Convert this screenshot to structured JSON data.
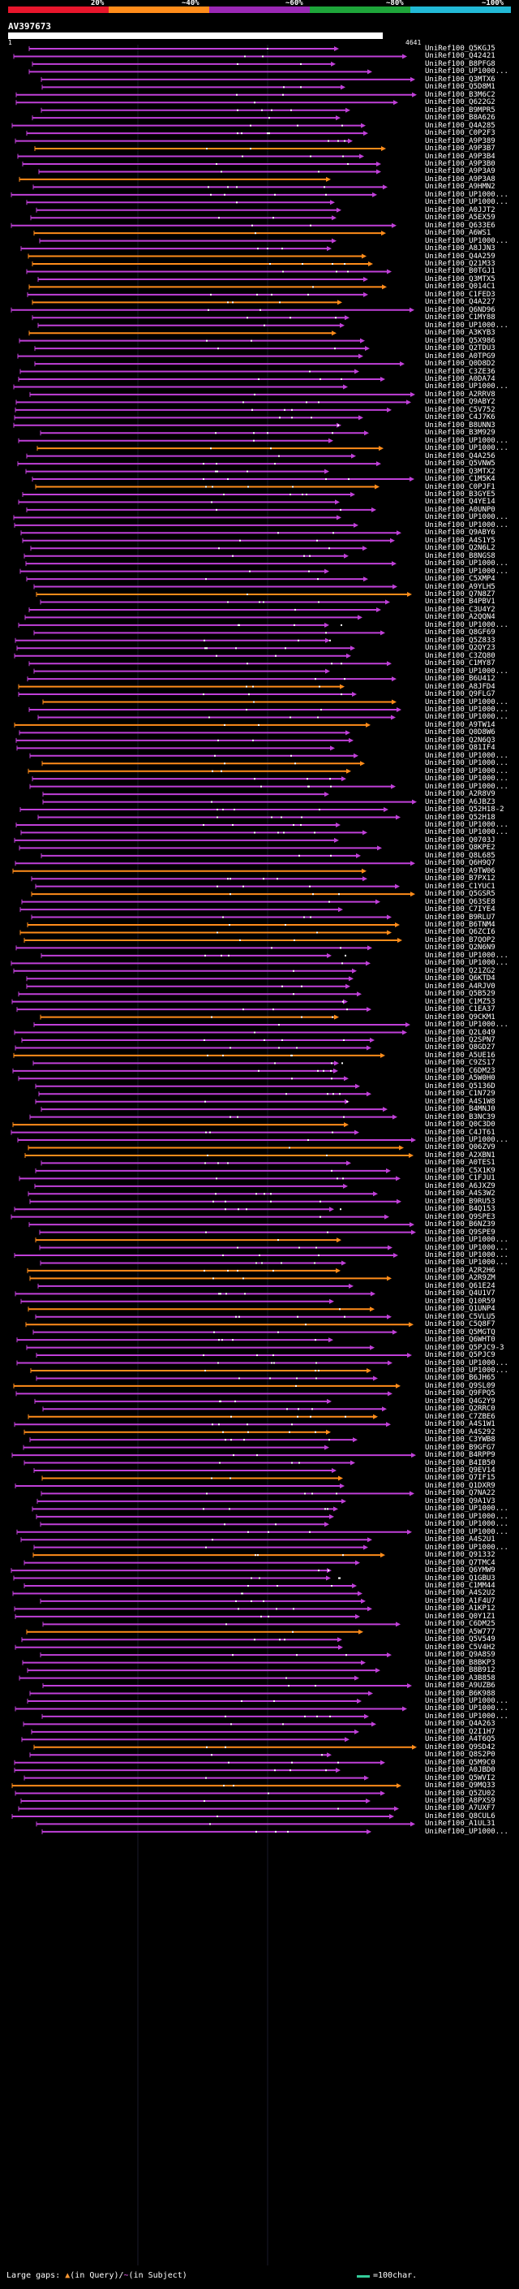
{
  "scale": {
    "labels": [
      "20%",
      "~40%",
      "~60%",
      "~80%",
      "~100%"
    ],
    "colors": [
      "#e8162c",
      "#ff8c1a",
      "#9b28b5",
      "#1ea53a",
      "#22b9d6"
    ]
  },
  "query": {
    "id": "AV397673",
    "start": "1",
    "end": "4641"
  },
  "hits": [
    "UniRef100_Q5KGJ5",
    "UniRef100_Q42421",
    "UniRef100_B8PFG8",
    "UniRef100_UP1000...",
    "UniRef100_Q3MTX6",
    "UniRef100_Q5D8M1",
    "UniRef100_B3M6C2",
    "UniRef100_Q622G2",
    "UniRef100_B9MPR5",
    "UniRef100_B8A626",
    "UniRef100_Q4A285",
    "UniRef100_C0P2F3",
    "UniRef100_A9P389",
    "UniRef100_A9P3B7",
    "UniRef100_A9P3B4",
    "UniRef100_A9P3B0",
    "UniRef100_A9P3A9",
    "UniRef100_A9P3A8",
    "UniRef100_A9HMN2",
    "UniRef100_UP1000...",
    "UniRef100_UP1000...",
    "UniRef100_A0JJT2",
    "UniRef100_A5EX59",
    "UniRef100_Q633E6",
    "UniRef100_A6WS1",
    "UniRef100_UP1000...",
    "UniRef100_A8JJN3",
    "UniRef100_Q4A259",
    "UniRef100_Q21M33",
    "UniRef100_B0TGJ1",
    "UniRef100_Q3MTX5",
    "UniRef100_Q014C1",
    "UniRef100_C1FED3",
    "UniRef100_Q4A227",
    "UniRef100_Q6ND96",
    "UniRef100_C1MY88",
    "UniRef100_UP1000...",
    "UniRef100_A3KYB3",
    "UniRef100_Q5X986",
    "UniRef100_Q2TDU3",
    "UniRef100_A0TPG9",
    "UniRef100_Q0D8D2",
    "UniRef100_C3ZE36",
    "UniRef100_A0DA74",
    "UniRef100_UP1000...",
    "UniRef100_A2RRV8",
    "UniRef100_Q9ABY2",
    "UniRef100_C5V752",
    "UniRef100_C4J7K6",
    "UniRef100_B8UNN3",
    "UniRef100_B3M929",
    "UniRef100_UP1000...",
    "UniRef100_UP1000...",
    "UniRef100_Q4A256",
    "UniRef100_Q5VNW5",
    "UniRef100_Q3MTX2",
    "UniRef100_C1M5K4",
    "UniRef100_C0PJF1",
    "UniRef100_B3GYE5",
    "UniRef100_Q4YE14",
    "UniRef100_A0UNP0",
    "UniRef100_UP1000...",
    "UniRef100_UP1000...",
    "UniRef100_Q9ABY6",
    "UniRef100_A4S1Y5",
    "UniRef100_Q2N6L2",
    "UniRef100_B8NGS8",
    "UniRef100_UP1000...",
    "UniRef100_UP1000...",
    "UniRef100_C5XMP4",
    "UniRef100_A9YLH5",
    "UniRef100_Q7N8Z7",
    "UniRef100_B4PBV1",
    "UniRef100_C3U4Y2",
    "UniRef100_A2QQN4",
    "UniRef100_UP1000...",
    "UniRef100_Q8GF69",
    "UniRef100_Q5Z833",
    "UniRef100_Q2QY23",
    "UniRef100_C3ZQ80",
    "UniRef100_C1MY87",
    "UniRef100_UP1000...",
    "UniRef100_B6U412",
    "UniRef100_A8JFD4",
    "UniRef100_Q9FLG7",
    "UniRef100_UP1000...",
    "UniRef100_UP1000...",
    "UniRef100_UP1000...",
    "UniRef100_A9TW14",
    "UniRef100_Q0D8W6",
    "UniRef100_Q2N6Q3",
    "UniRef100_Q81IF4",
    "UniRef100_UP1000...",
    "UniRef100_UP1000...",
    "UniRef100_UP1000...",
    "UniRef100_UP1000...",
    "UniRef100_UP1000...",
    "UniRef100_A2R8V9",
    "UniRef100_A6JBZ3",
    "UniRef100_Q52H18-2",
    "UniRef100_Q52H18",
    "UniRef100_UP1000...",
    "UniRef100_UP1000...",
    "UniRef100_Q0703J",
    "UniRef100_Q8KPE2",
    "UniRef100_Q8L685",
    "UniRef100_Q6H9Q7",
    "UniRef100_A9TW06",
    "UniRef100_B7PX12",
    "UniRef100_C1YUC1",
    "UniRef100_Q5GSR5",
    "UniRef100_Q63SE8",
    "UniRef100_C7IYE4",
    "UniRef100_B9RLU7",
    "UniRef100_B6TNM4",
    "UniRef100_Q6ZCI6",
    "UniRef100_B7QOP2",
    "UniRef100_Q2N6N9",
    "UniRef100_UP1000...",
    "UniRef100_UP1000...",
    "UniRef100_Q21ZG2",
    "UniRef100_Q6KTD4",
    "UniRef100_A4RJV0",
    "UniRef100_Q5B529",
    "UniRef100_C1MZ53",
    "UniRef100_C1EA37",
    "UniRef100_Q9CKM1",
    "UniRef100_UP1000...",
    "UniRef100_Q2L049",
    "UniRef100_Q2SPN7",
    "UniRef100_Q8GD27",
    "UniRef100_A5UE16",
    "UniRef100_C9ZS17",
    "UniRef100_C6DM23",
    "UniRef100_A5W0H0",
    "UniRef100_Q5136D",
    "UniRef100_C1N729",
    "UniRef100_A4S1W8",
    "UniRef100_B4MNJ0",
    "UniRef100_B3NC39",
    "UniRef100_Q0C3D0",
    "UniRef100_C4JT61",
    "UniRef100_UP1000...",
    "UniRef100_Q06ZV9",
    "UniRef100_A2XBN1",
    "UniRef100_A0TES1",
    "UniRef100_C5X1K9",
    "UniRef100_C1FJU1",
    "UniRef100_A6JXZ9",
    "UniRef100_A4S3W2",
    "UniRef100_B9RU53",
    "UniRef100_B4Q153",
    "UniRef100_Q9SPE3",
    "UniRef100_B6NZ39",
    "UniRef100_Q9SPE9",
    "UniRef100_UP1000...",
    "UniRef100_UP1000...",
    "UniRef100_UP1000...",
    "UniRef100_UP1000...",
    "UniRef100_A2R2H6",
    "UniRef100_A2R9ZM",
    "UniRef100_Q61E24",
    "UniRef100_Q4U1V7",
    "UniRef100_Q10R59",
    "UniRef100_Q1UNP4",
    "UniRef100_C5VLU5",
    "UniRef100_C5Q8F7",
    "UniRef100_Q5MGTQ",
    "UniRef100_Q6WHT0",
    "UniRef100_Q5PJC9-3",
    "UniRef100_Q5PJC9",
    "UniRef100_UP1000...",
    "UniRef100_UP1000...",
    "UniRef100_B6JH65",
    "UniRef100_Q9SL09",
    "UniRef100_Q9FPQ5",
    "UniRef100_Q4G2Y9",
    "UniRef100_Q2RRC0",
    "UniRef100_C7ZBE6",
    "UniRef100_A4S1W1",
    "UniRef100_A4S292",
    "UniRef100_C3YWB8",
    "UniRef100_B9GFG7",
    "UniRef100_B4RPP9",
    "UniRef100_B4IB50",
    "UniRef100_Q9EV14",
    "UniRef100_Q7IF15",
    "UniRef100_Q1DXR9",
    "UniRef100_Q7NA22",
    "UniRef100_Q9A1V3",
    "UniRef100_UP1000...",
    "UniRef100_UP1000...",
    "UniRef100_UP1000...",
    "UniRef100_UP1000...",
    "UniRef100_A4S2U1",
    "UniRef100_UP1000...",
    "UniRef100_Q91332",
    "UniRef100_Q7TMC4",
    "UniRef100_Q6YMW9",
    "UniRef100_Q1GBU3",
    "UniRef100_C1MM44",
    "UniRef100_A4S2U2",
    "UniRef100_A1F4U7",
    "UniRef100_A1KP12",
    "UniRef100_Q0Y1Z1",
    "UniRef100_C6DM25",
    "UniRef100_A5W777",
    "UniRef100_Q5V549",
    "UniRef100_C5V4H2",
    "UniRef100_Q9A8S9",
    "UniRef100_B8BKP3",
    "UniRef100_B8B912",
    "UniRef100_A3B858",
    "UniRef100_A9UZB6",
    "UniRef100_B6K988",
    "UniRef100_UP1000...",
    "UniRef100_UP1000...",
    "UniRef100_UP1000...",
    "UniRef100_Q4A263",
    "UniRef100_Q2I1H7",
    "UniRef100_A4T6Q5",
    "UniRef100_Q9SD42",
    "UniRef100_Q8S2P0",
    "UniRef100_Q5M9C0",
    "UniRef100_A0JBD0",
    "UniRef100_Q5WVI2",
    "UniRef100_Q9MQ33",
    "UniRef100_Q5ZU02",
    "UniRef100_A8PXS9",
    "UniRef100_A7UXF7",
    "UniRef100_Q8CUL6",
    "UniRef100_A1UL31",
    "UniRef100_UP1000..."
  ],
  "footer": {
    "prefix": "Large gaps: ",
    "query_symbol": "▲",
    "query_text": "(in Query)/",
    "subject_symbol": "~",
    "subject_text": "(in Subject)",
    "legend_text": "=100char."
  }
}
